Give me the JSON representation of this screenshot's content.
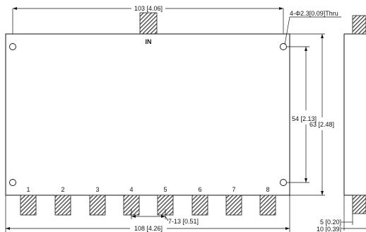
{
  "drawing": {
    "input_label": "IN",
    "hole_callout": "4-Φ2.3[0.09]Thru",
    "port_numbers": [
      "1",
      "2",
      "3",
      "4",
      "5",
      "6",
      "7",
      "8"
    ],
    "dimensions": {
      "hole_spacing_x": "103 [4.06]",
      "overall_width": "108 [4.26]",
      "port_pitch": "7-13 [0.51]",
      "hole_spacing_y": "54 [2.13]",
      "overall_height": "63 [2.48]",
      "side_offset": "5 [0.20]",
      "side_thickness": "10 [0.39]"
    }
  }
}
